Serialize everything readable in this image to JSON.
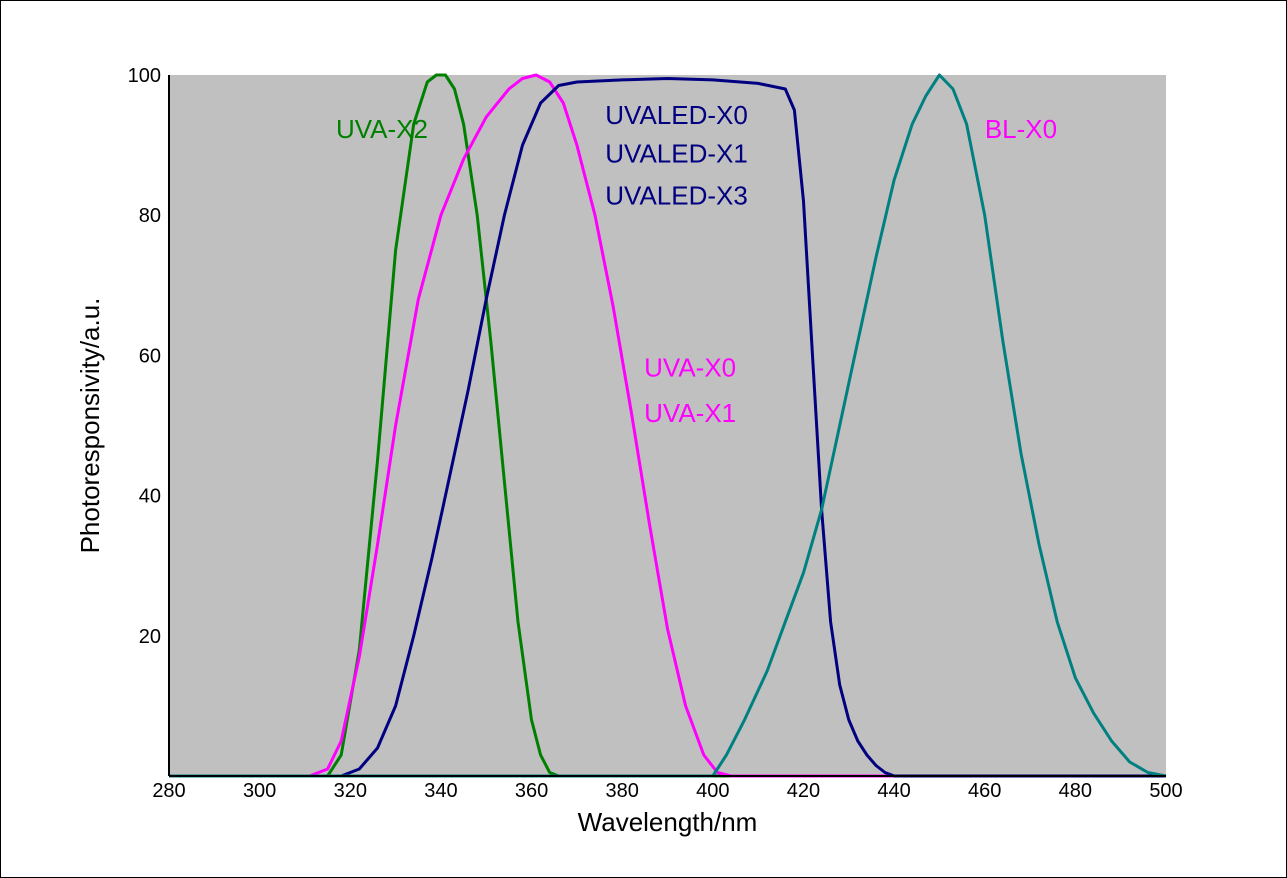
{
  "chart_data": {
    "type": "line",
    "title": "",
    "xlabel": "Wavelength/nm",
    "ylabel": "Photoresponsivity/a.u.",
    "xlim": [
      280,
      500
    ],
    "ylim": [
      0,
      100
    ],
    "x_ticks": [
      280,
      300,
      320,
      340,
      360,
      380,
      400,
      420,
      440,
      460,
      480,
      500
    ],
    "y_ticks": [
      20,
      40,
      60,
      80,
      100
    ],
    "grid": false,
    "legend": "none",
    "plot_background": "#c0c0c0",
    "series": [
      {
        "name": "UVA-X2",
        "color": "#008000",
        "x": [
          280,
          315,
          318,
          322,
          326,
          330,
          334,
          337,
          339,
          341,
          343,
          345,
          348,
          351,
          354,
          357,
          360,
          362,
          364,
          366,
          500
        ],
        "y": [
          0,
          0,
          3,
          18,
          45,
          75,
          93,
          99,
          100,
          100,
          98,
          93,
          80,
          62,
          42,
          22,
          8,
          3,
          0.5,
          0,
          0
        ]
      },
      {
        "name": "UVA-X0 / UVA-X1",
        "color": "#ff00ff",
        "x": [
          280,
          311,
          315,
          318,
          322,
          326,
          330,
          335,
          340,
          345,
          350,
          355,
          358,
          361,
          364,
          367,
          370,
          374,
          378,
          382,
          386,
          390,
          394,
          398,
          401,
          404,
          500
        ],
        "y": [
          0,
          0,
          1,
          5,
          17,
          33,
          50,
          68,
          80,
          88,
          94,
          98,
          99.5,
          100,
          99,
          96,
          90,
          80,
          67,
          52,
          36,
          21,
          10,
          3,
          0.5,
          0,
          0
        ]
      },
      {
        "name": "UVALED-X0 / UVALED-X1 / UVALED-X3",
        "color": "#000080",
        "x": [
          280,
          318,
          322,
          326,
          330,
          334,
          338,
          342,
          346,
          350,
          354,
          358,
          362,
          366,
          370,
          380,
          390,
          400,
          410,
          416,
          418,
          420,
          422,
          424,
          426,
          428,
          430,
          432,
          434,
          436,
          438,
          440,
          500
        ],
        "y": [
          0,
          0,
          1,
          4,
          10,
          20,
          31,
          43,
          55,
          68,
          80,
          90,
          96,
          98.5,
          99,
          99.3,
          99.5,
          99.3,
          98.8,
          98,
          95,
          82,
          60,
          38,
          22,
          13,
          8,
          5,
          3,
          1.5,
          0.5,
          0,
          0
        ]
      },
      {
        "name": "BL-X0",
        "color": "#008080",
        "x": [
          280,
          400,
          403,
          407,
          412,
          416,
          420,
          424,
          428,
          432,
          436,
          440,
          444,
          447,
          450,
          453,
          456,
          460,
          464,
          468,
          472,
          476,
          480,
          484,
          488,
          492,
          496,
          500
        ],
        "y": [
          0,
          0,
          3,
          8,
          15,
          22,
          29,
          38,
          50,
          62,
          74,
          85,
          93,
          97,
          100,
          98,
          93,
          80,
          62,
          46,
          33,
          22,
          14,
          9,
          5,
          2,
          0.5,
          0
        ]
      }
    ],
    "annotations": [
      {
        "text": "UVA-X2",
        "color": "#008000",
        "x": 327,
        "y": 91
      },
      {
        "text": "UVALED-X0",
        "color": "#000080",
        "x": 392,
        "y": 93
      },
      {
        "text": "UVALED-X1",
        "color": "#000080",
        "x": 392,
        "y": 87.5
      },
      {
        "text": "UVALED-X3",
        "color": "#000080",
        "x": 392,
        "y": 81.5
      },
      {
        "text": "UVA-X0",
        "color": "#ff00ff",
        "x": 395,
        "y": 57
      },
      {
        "text": "UVA-X1",
        "color": "#ff00ff",
        "x": 395,
        "y": 50.5
      },
      {
        "text": "BL-X0",
        "color": "#ff00ff",
        "x": 468,
        "y": 91
      }
    ]
  }
}
